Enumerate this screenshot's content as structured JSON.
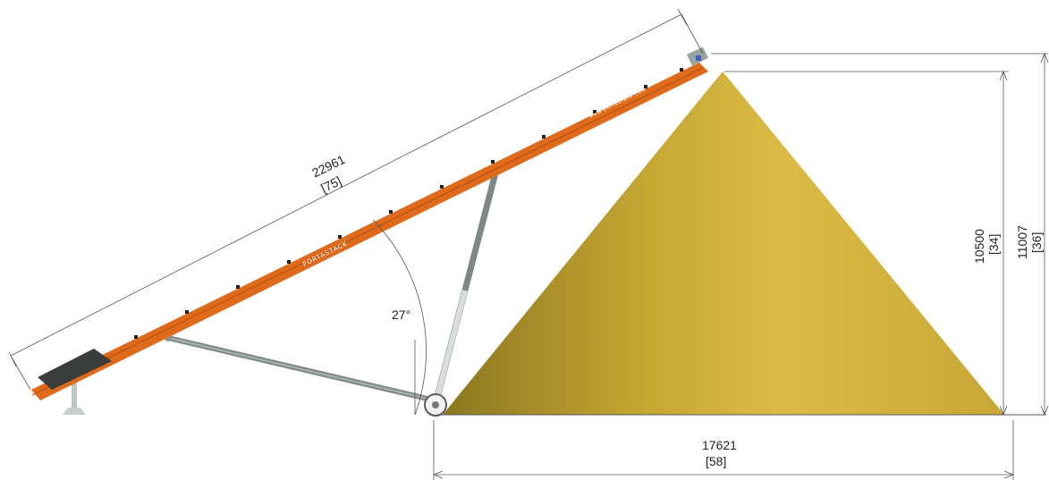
{
  "dimensions": {
    "conveyor_length": {
      "mm": "22961",
      "ft": "[75]"
    },
    "angle": "27°",
    "pile_height": {
      "mm": "10500",
      "ft": "[34]"
    },
    "discharge_height": {
      "mm": "11007",
      "ft": "[36]"
    },
    "pile_diameter": {
      "mm": "17621",
      "ft": "[58]"
    }
  },
  "branding": {
    "brand_text": "PORTASTACK",
    "website_text": "www.portastack.com"
  },
  "colors": {
    "conveyor": "#e06a1c",
    "pile": "#d4b33b",
    "frame": "#8c9794"
  }
}
